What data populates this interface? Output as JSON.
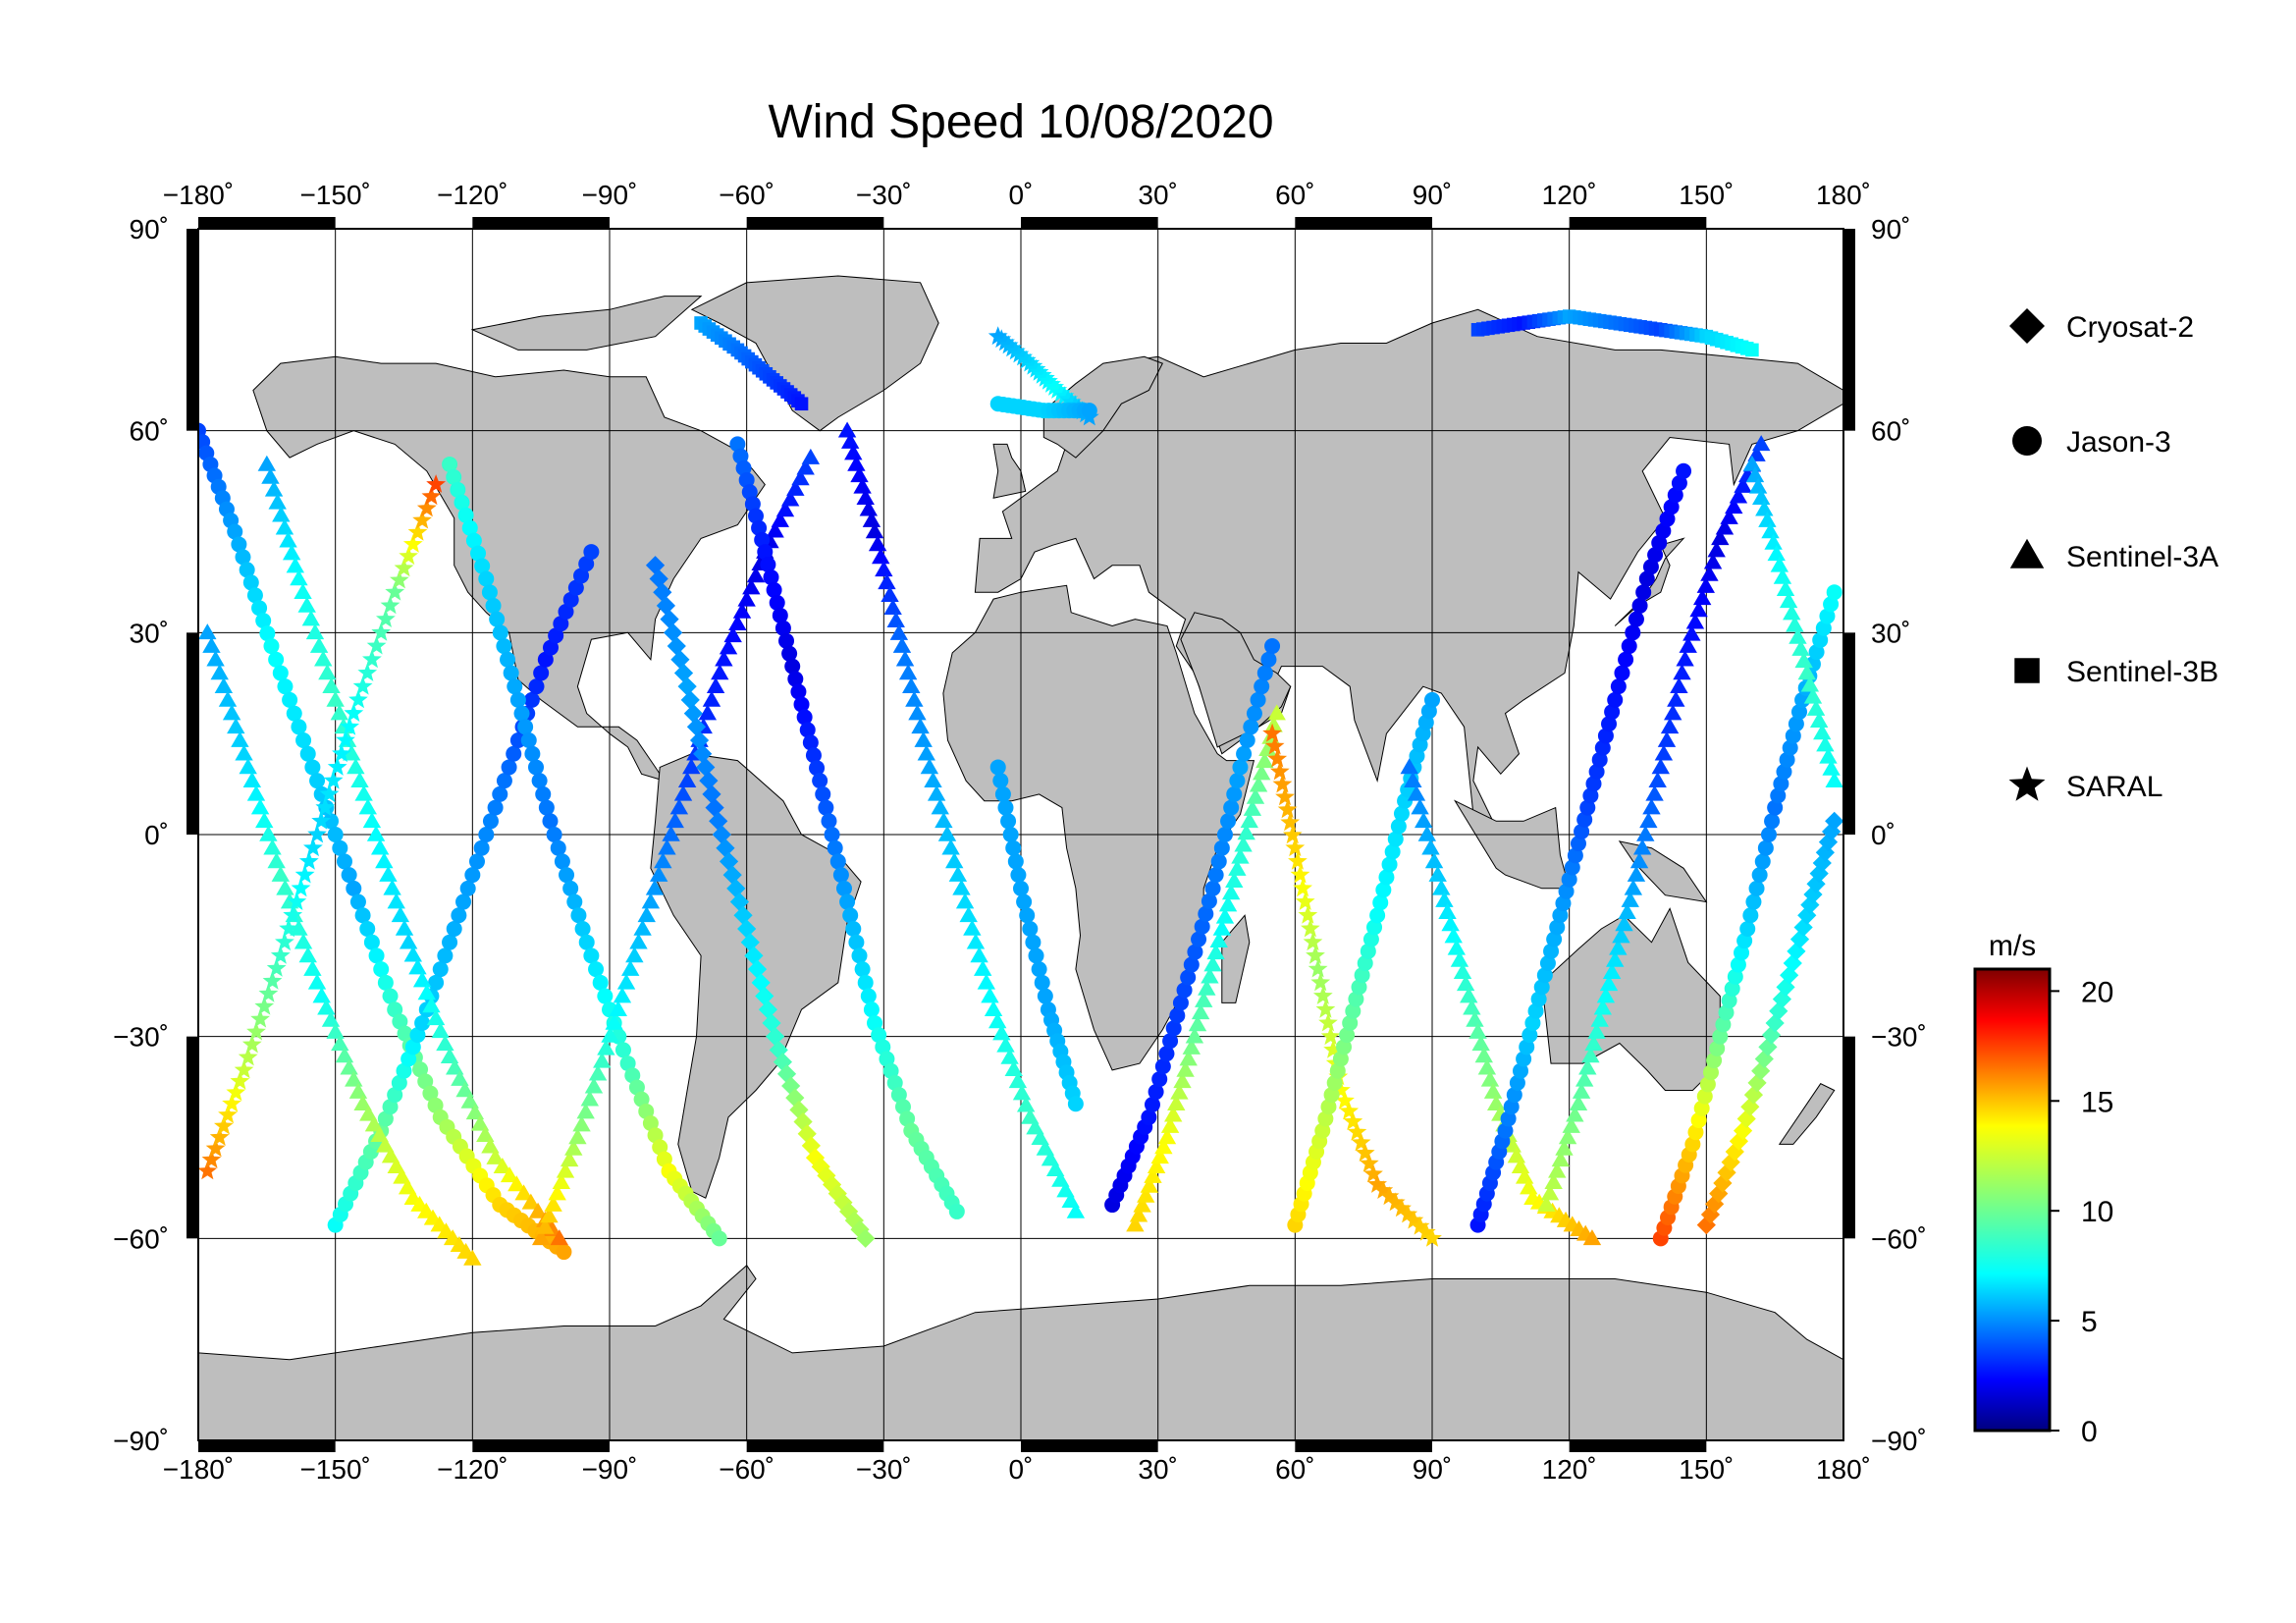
{
  "title": "Wind Speed 10/08/2020",
  "map": {
    "projection": "equirectangular",
    "lon_range": [
      -180,
      180
    ],
    "lat_range": [
      -90,
      90
    ],
    "grid_step_deg": 30,
    "grid": true,
    "land_color": "#bebebe",
    "ocean_color": "#ffffff",
    "lon_ticks": [
      "−180˚",
      "−150˚",
      "−120˚",
      "−90˚",
      "−60˚",
      "−30˚",
      "0˚",
      "30˚",
      "60˚",
      "90˚",
      "120˚",
      "150˚",
      "180˚"
    ],
    "lat_ticks": [
      "90˚",
      "60˚",
      "30˚",
      "0˚",
      "−30˚",
      "−60˚",
      "−90˚"
    ]
  },
  "legend": {
    "placement": "right",
    "items": [
      {
        "label": "Cryosat-2",
        "symbol": "diamond"
      },
      {
        "label": "Jason-3",
        "symbol": "circle"
      },
      {
        "label": "Sentinel-3A",
        "symbol": "triangle"
      },
      {
        "label": "Sentinel-3B",
        "symbol": "square"
      },
      {
        "label": "SARAL",
        "symbol": "star"
      }
    ]
  },
  "colorbar": {
    "unit": "m/s",
    "min": 0,
    "max": 21,
    "tick_labels": [
      "20",
      "15",
      "10",
      "5",
      "0"
    ],
    "tick_values": [
      20,
      15,
      10,
      5,
      0
    ],
    "colormap": "jet"
  },
  "chart_data": {
    "type": "scatter",
    "title": "Wind Speed 10/08/2020",
    "xlabel": "",
    "ylabel": "",
    "xlim": [
      -180,
      180
    ],
    "ylim": [
      -90,
      90
    ],
    "tracks": [
      {
        "symbol": "circle",
        "points": [
          [
            -180,
            60,
            4
          ],
          [
            -172,
            45,
            6
          ],
          [
            -164,
            28,
            8
          ],
          [
            -155,
            10,
            7
          ],
          [
            -146,
            -8,
            6
          ],
          [
            -137,
            -26,
            9
          ],
          [
            -127,
            -42,
            11
          ],
          [
            -114,
            -55,
            14
          ],
          [
            -100,
            -62,
            15
          ]
        ]
      },
      {
        "symbol": "circle",
        "points": [
          [
            -150,
            -58,
            8
          ],
          [
            -140,
            -44,
            10
          ],
          [
            -131,
            -28,
            7
          ],
          [
            -122,
            -10,
            6
          ],
          [
            -113,
            8,
            5
          ],
          [
            -104,
            26,
            3
          ],
          [
            -94,
            42,
            4
          ]
        ]
      },
      {
        "symbol": "triangle",
        "points": [
          [
            -178,
            30,
            6
          ],
          [
            -170,
            12,
            7
          ],
          [
            -162,
            -6,
            9
          ],
          [
            -153,
            -24,
            8
          ],
          [
            -144,
            -40,
            11
          ],
          [
            -133,
            -54,
            13
          ],
          [
            -120,
            -63,
            14
          ]
        ]
      },
      {
        "symbol": "triangle",
        "points": [
          [
            -165,
            55,
            6
          ],
          [
            -158,
            38,
            8
          ],
          [
            -150,
            20,
            9
          ],
          [
            -142,
            2,
            8
          ],
          [
            -134,
            -16,
            7
          ],
          [
            -125,
            -33,
            9
          ],
          [
            -115,
            -48,
            12
          ],
          [
            -101,
            -60,
            16
          ]
        ]
      },
      {
        "symbol": "star",
        "points": [
          [
            -178,
            -50,
            16
          ],
          [
            -170,
            -35,
            12
          ],
          [
            -162,
            -18,
            9
          ],
          [
            -154,
            0,
            7
          ],
          [
            -146,
            18,
            8
          ],
          [
            -137,
            36,
            10
          ],
          [
            -128,
            52,
            17
          ]
        ]
      },
      {
        "symbol": "circle",
        "points": [
          [
            -125,
            55,
            9
          ],
          [
            -117,
            38,
            7
          ],
          [
            -110,
            20,
            6
          ],
          [
            -103,
            2,
            5
          ],
          [
            -95,
            -16,
            7
          ],
          [
            -86,
            -34,
            9
          ],
          [
            -77,
            -50,
            13
          ],
          [
            -66,
            -60,
            10
          ]
        ]
      },
      {
        "symbol": "triangle",
        "points": [
          [
            -105,
            -60,
            15
          ],
          [
            -97,
            -45,
            11
          ],
          [
            -89,
            -28,
            8
          ],
          [
            -81,
            -10,
            6
          ],
          [
            -73,
            8,
            4
          ],
          [
            -65,
            26,
            3
          ],
          [
            -56,
            42,
            2
          ],
          [
            -46,
            56,
            4
          ]
        ]
      },
      {
        "symbol": "diamond",
        "points": [
          [
            -80,
            40,
            5
          ],
          [
            -73,
            22,
            6
          ],
          [
            -67,
            4,
            5
          ],
          [
            -60,
            -14,
            7
          ],
          [
            -53,
            -32,
            9
          ],
          [
            -45,
            -48,
            13
          ],
          [
            -34,
            -60,
            11
          ]
        ]
      },
      {
        "symbol": "circle",
        "points": [
          [
            -62,
            58,
            5
          ],
          [
            -56,
            42,
            3
          ],
          [
            -50,
            25,
            2
          ],
          [
            -44,
            8,
            4
          ],
          [
            -38,
            -10,
            6
          ],
          [
            -32,
            -28,
            8
          ],
          [
            -24,
            -44,
            10
          ],
          [
            -14,
            -56,
            9
          ]
        ]
      },
      {
        "symbol": "triangle",
        "points": [
          [
            -38,
            60,
            3
          ],
          [
            -32,
            45,
            2
          ],
          [
            -26,
            28,
            5
          ],
          [
            -20,
            10,
            6
          ],
          [
            -13,
            -8,
            7
          ],
          [
            -6,
            -26,
            8
          ],
          [
            2,
            -42,
            9
          ],
          [
            12,
            -56,
            8
          ]
        ]
      },
      {
        "symbol": "circle",
        "points": [
          [
            -5,
            10,
            6
          ],
          [
            0,
            -8,
            6
          ],
          [
            6,
            -26,
            6
          ],
          [
            12,
            -40,
            7
          ]
        ]
      },
      {
        "symbol": "circle",
        "points": [
          [
            20,
            -55,
            2
          ],
          [
            28,
            -42,
            3
          ],
          [
            35,
            -25,
            4
          ],
          [
            42,
            -8,
            5
          ],
          [
            48,
            10,
            6
          ],
          [
            55,
            28,
            5
          ]
        ]
      },
      {
        "symbol": "triangle",
        "points": [
          [
            25,
            -58,
            14
          ],
          [
            32,
            -45,
            13
          ],
          [
            38,
            -30,
            10
          ],
          [
            44,
            -14,
            8
          ],
          [
            50,
            2,
            9
          ],
          [
            56,
            18,
            12
          ]
        ]
      },
      {
        "symbol": "star",
        "points": [
          [
            55,
            15,
            16
          ],
          [
            60,
            -2,
            14
          ],
          [
            65,
            -20,
            11
          ],
          [
            70,
            -38,
            13
          ],
          [
            78,
            -52,
            15
          ],
          [
            90,
            -60,
            14
          ]
        ]
      },
      {
        "symbol": "circle",
        "points": [
          [
            60,
            -58,
            14
          ],
          [
            66,
            -44,
            12
          ],
          [
            72,
            -28,
            10
          ],
          [
            78,
            -12,
            8
          ],
          [
            84,
            5,
            7
          ],
          [
            90,
            20,
            6
          ]
        ]
      },
      {
        "symbol": "triangle",
        "points": [
          [
            85,
            10,
            5
          ],
          [
            92,
            -8,
            7
          ],
          [
            98,
            -24,
            9
          ],
          [
            104,
            -40,
            11
          ],
          [
            112,
            -54,
            13
          ],
          [
            125,
            -60,
            15
          ]
        ]
      },
      {
        "symbol": "circle",
        "points": [
          [
            100,
            -58,
            3
          ],
          [
            106,
            -44,
            5
          ],
          [
            112,
            -28,
            7
          ],
          [
            118,
            -12,
            6
          ],
          [
            124,
            4,
            4
          ],
          [
            130,
            20,
            3
          ],
          [
            137,
            38,
            2
          ],
          [
            145,
            54,
            3
          ]
        ]
      },
      {
        "symbol": "triangle",
        "points": [
          [
            115,
            -55,
            12
          ],
          [
            122,
            -40,
            10
          ],
          [
            128,
            -24,
            8
          ],
          [
            134,
            -8,
            6
          ],
          [
            140,
            10,
            4
          ],
          [
            146,
            28,
            3
          ],
          [
            153,
            44,
            2
          ],
          [
            162,
            58,
            4
          ]
        ]
      },
      {
        "symbol": "circle",
        "points": [
          [
            140,
            -60,
            17
          ],
          [
            147,
            -46,
            14
          ],
          [
            153,
            -30,
            10
          ],
          [
            159,
            -14,
            7
          ],
          [
            165,
            4,
            5
          ],
          [
            171,
            20,
            6
          ],
          [
            178,
            36,
            8
          ]
        ]
      },
      {
        "symbol": "diamond",
        "points": [
          [
            150,
            -58,
            16
          ],
          [
            158,
            -44,
            13
          ],
          [
            165,
            -28,
            9
          ],
          [
            172,
            -12,
            7
          ],
          [
            178,
            2,
            6
          ]
        ]
      },
      {
        "symbol": "triangle",
        "points": [
          [
            160,
            55,
            6
          ],
          [
            166,
            40,
            8
          ],
          [
            172,
            24,
            9
          ],
          [
            178,
            8,
            8
          ]
        ]
      },
      {
        "symbol": "square",
        "points": [
          [
            100,
            75,
            4
          ],
          [
            110,
            76,
            3
          ],
          [
            120,
            77,
            6
          ],
          [
            130,
            76,
            5
          ],
          [
            140,
            75,
            4
          ],
          [
            150,
            74,
            7
          ],
          [
            160,
            72,
            8
          ]
        ]
      },
      {
        "symbol": "star",
        "points": [
          [
            -5,
            74,
            6
          ],
          [
            2,
            70,
            7
          ],
          [
            8,
            66,
            8
          ],
          [
            15,
            62,
            6
          ]
        ]
      },
      {
        "symbol": "circle",
        "points": [
          [
            -5,
            64,
            7
          ],
          [
            5,
            63,
            7
          ],
          [
            15,
            63,
            6
          ]
        ]
      },
      {
        "symbol": "square",
        "points": [
          [
            -70,
            76,
            6
          ],
          [
            -62,
            72,
            5
          ],
          [
            -55,
            68,
            4
          ],
          [
            -48,
            64,
            3
          ]
        ]
      }
    ]
  }
}
